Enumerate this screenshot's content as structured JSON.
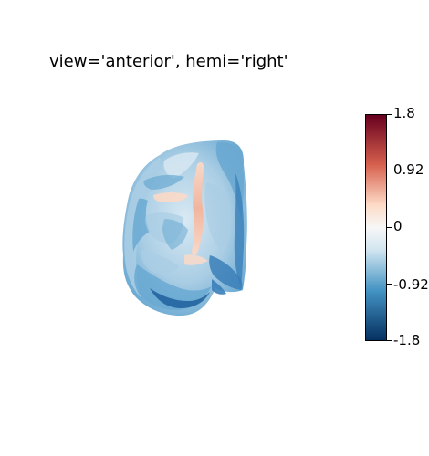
{
  "figure": {
    "title": "view='anterior', hemi='right'"
  },
  "colorbar": {
    "colormap": "RdBu_r",
    "min": -1.8,
    "max": 1.8,
    "tick_labels": [
      "1.8",
      "0.92",
      "0",
      "-0.92",
      "-1.8"
    ],
    "colors": {
      "top": "#67001f",
      "upper": "#d6604d",
      "mid_upper": "#fddbc7",
      "center": "#f7f7f7",
      "mid_lower": "#d1e5f0",
      "lower": "#4393c3",
      "bottom": "#053061"
    }
  },
  "brain": {
    "view": "anterior",
    "hemi": "right",
    "palette": {
      "pale": "#d9e9f3",
      "light": "#a9cde4",
      "mid": "#6aa9d2",
      "deep": "#3a7fb9",
      "dark": "#1f5f9c",
      "warm": "#f4b39a",
      "warm_light": "#fbd9c8"
    }
  }
}
